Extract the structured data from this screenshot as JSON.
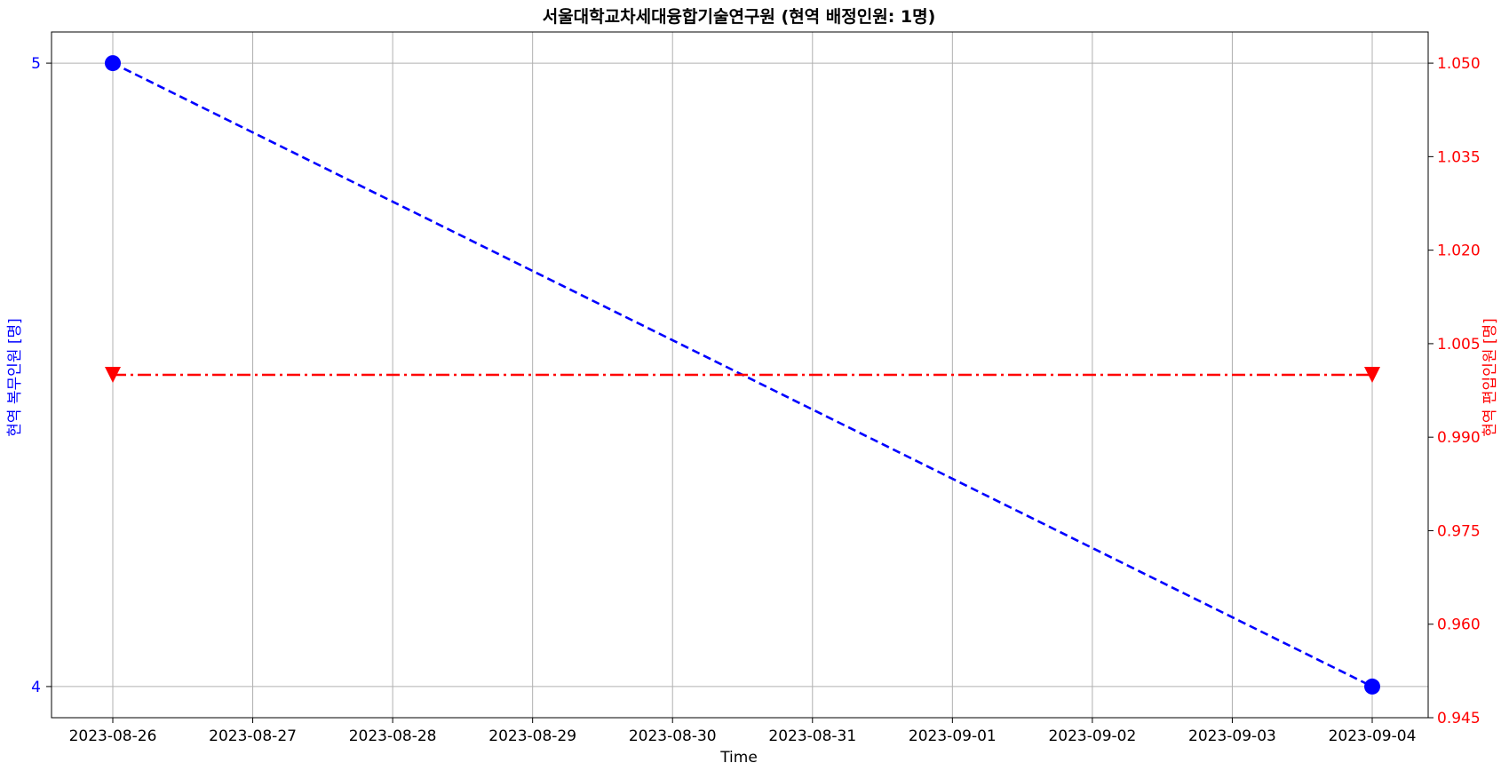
{
  "chart_data": {
    "type": "line",
    "title": "서울대학교차세대융합기술연구원  (현역  배정인원:  1명)",
    "xlabel": "Time",
    "ylabel_left": "현역  복무인원  [명]",
    "ylabel_right": "현역  편입인원  [명]",
    "x_tick_labels": [
      "2023-08-26",
      "2023-08-27",
      "2023-08-28",
      "2023-08-29",
      "2023-08-30",
      "2023-08-31",
      "2023-09-01",
      "2023-09-02",
      "2023-09-03",
      "2023-09-04"
    ],
    "left_y_ticks": [
      "4",
      "5"
    ],
    "left_ylim": [
      3.95,
      5.05
    ],
    "right_y_ticks": [
      "0.945",
      "0.960",
      "0.975",
      "0.990",
      "1.005",
      "1.020",
      "1.035",
      "1.050"
    ],
    "right_ylim": [
      0.945,
      1.055
    ],
    "grid": true,
    "series": [
      {
        "axis": "left",
        "color": "#0000ff",
        "line_style": "dashed",
        "marker": "circle",
        "x": [
          "2023-08-26",
          "2023-09-04"
        ],
        "values": [
          5,
          4
        ]
      },
      {
        "axis": "right",
        "color": "#ff0000",
        "line_style": "dashdot",
        "marker": "triangle-down",
        "x": [
          "2023-08-26",
          "2023-09-04"
        ],
        "values": [
          1,
          1
        ]
      }
    ]
  },
  "colors": {
    "left_axis": "#0000ff",
    "right_axis": "#ff0000",
    "grid": "#b0b0b0"
  }
}
